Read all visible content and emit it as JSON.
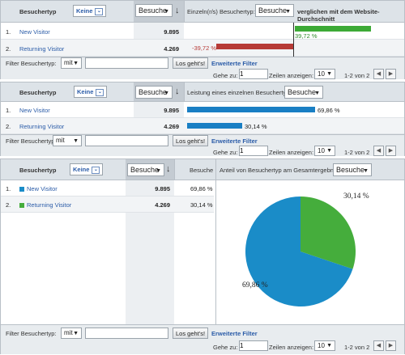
{
  "colors": {
    "primary_bar": "#1a7fc4",
    "positive_bar": "#3daa36",
    "negative_bar": "#b63a36",
    "pie_new": "#1a8cc8",
    "pie_returning": "#45ad3c"
  },
  "icons": {
    "sort_desc": "down-arrow-icon",
    "dropdown": "chevron-down-icon",
    "page_prev": "triangle-left-icon",
    "page_next": "triangle-right-icon"
  },
  "panel1": {
    "col_visitor_type": "Besuchertyp",
    "dim_select": "Keine",
    "metric_select": "Besuche",
    "sort_arrow": "↓",
    "compare_label": "Einzeln(r/s) Besuchertyp:",
    "compare_metric": "Besuche",
    "compare_suffix": "verglichen mit dem Website-Durchschnitt",
    "rows": [
      {
        "idx": "1.",
        "name": "New Visitor",
        "value": "9.895",
        "delta": "39,72 %",
        "delta_value": 39.72
      },
      {
        "idx": "2.",
        "name": "Returning Visitor",
        "value": "4.269",
        "delta": "-39,72 %",
        "delta_value": -39.72
      }
    ]
  },
  "panel2": {
    "col_visitor_type": "Besuchertyp",
    "dim_select": "Keine",
    "metric_select": "Besuche",
    "sort_arrow": "↓",
    "perf_label": "Leistung eines einzelnen Besuchertyp:",
    "perf_metric": "Besuche",
    "rows": [
      {
        "idx": "1.",
        "name": "New Visitor",
        "value": "9.895",
        "pct": "69,86 %",
        "pct_value": 69.86
      },
      {
        "idx": "2.",
        "name": "Returning Visitor",
        "value": "4.269",
        "pct": "30,14 %",
        "pct_value": 30.14
      }
    ]
  },
  "panel3": {
    "col_visitor_type": "Besuchertyp",
    "dim_select": "Keine",
    "metric_select": "Besuche",
    "sort_arrow": "↓",
    "col_visits": "Besuche",
    "share_label": "Anteil von Besuchertyp am Gesamtergebnis:",
    "share_metric": "Besuche",
    "rows": [
      {
        "idx": "1.",
        "name": "New Visitor",
        "value": "9.895",
        "pct": "69,86 %"
      },
      {
        "idx": "2.",
        "name": "Returning Visitor",
        "value": "4.269",
        "pct": "30,14 %"
      }
    ]
  },
  "footer": {
    "filter_label": "Filter Besuchertyp:",
    "filter_mode": "mit",
    "filter_value": "",
    "go_button": "Los geht's!",
    "advanced_filter": "Erweiterte Filter",
    "goto_label": "Gehe zu:",
    "goto_value": "1",
    "rows_label": "Zeilen anzeigen:",
    "rows_value": "10",
    "page_range": "1-2 von 2"
  },
  "chart_data": {
    "type": "pie",
    "categories": [
      "New Visitor",
      "Returning Visitor"
    ],
    "values": [
      69.86,
      30.14
    ],
    "labels": [
      "69,86 %",
      "30,14 %"
    ]
  }
}
